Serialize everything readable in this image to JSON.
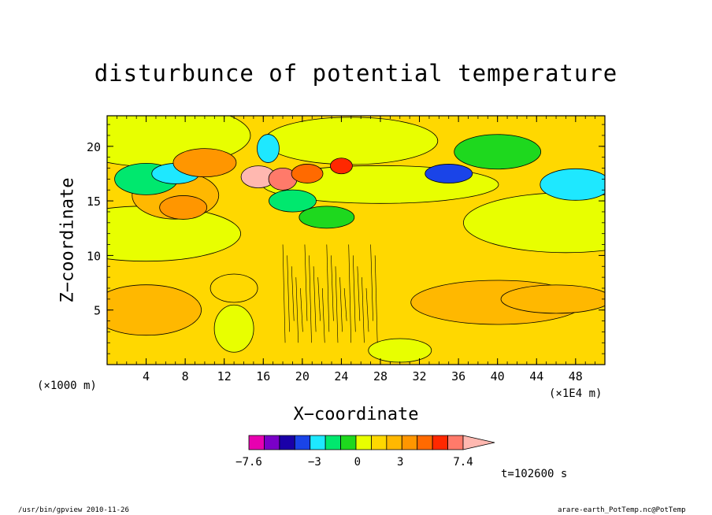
{
  "title": "disturbunce of potential temperature",
  "x_axis_title": "X−coordinate",
  "y_axis_title": "Z−coordinate",
  "x_unit_label": "(×1000 m)",
  "x_scale_label": "(×1E4 m)",
  "time_label": "t=102600 s",
  "footer_left": "/usr/bin/gpview   2010-11-26",
  "footer_right": "arare-earth_PotTemp.nc@PotTemp",
  "colors": {
    "levels": [
      "#e800b0",
      "#7a00c8",
      "#1a00a8",
      "#1a44e8",
      "#1ee8ff",
      "#00e86e",
      "#1ed81e",
      "#e8ff00",
      "#ffd800",
      "#ffb800",
      "#ff9600",
      "#ff6a00",
      "#ff2800",
      "#ff7a6a",
      "#ffb8b0"
    ]
  },
  "chart_data": {
    "type": "heatmap",
    "title": "disturbunce of potential temperature",
    "xlabel": "X−coordinate",
    "ylabel": "Z−coordinate",
    "xlim": [
      0,
      51
    ],
    "ylim": [
      0,
      22.8
    ],
    "x_ticks": [
      4,
      8,
      12,
      16,
      20,
      24,
      28,
      32,
      36,
      40,
      44,
      48
    ],
    "y_ticks": [
      5,
      10,
      15,
      20
    ],
    "colorbar": {
      "min": -7.6,
      "max": 7.4,
      "tick_labels": [
        "−7.6",
        "−3",
        "0",
        "3",
        "7.4"
      ],
      "tick_values": [
        -7.6,
        -3,
        0,
        3,
        7.4
      ]
    },
    "features": [
      {
        "kind": "background",
        "value": 0.4
      },
      {
        "kind": "region",
        "x": 25,
        "y": 20.5,
        "value": -0.5
      },
      {
        "kind": "region",
        "x": 28,
        "y": 16.5,
        "value": -0.5
      },
      {
        "kind": "region",
        "x": 5,
        "y": 21,
        "value": -0.5
      },
      {
        "kind": "region",
        "x": 47,
        "y": 13,
        "value": -0.4
      },
      {
        "kind": "region",
        "x": 4,
        "y": 12,
        "value": -0.4
      },
      {
        "kind": "region",
        "x": 13,
        "y": 3.3,
        "value": -0.4
      },
      {
        "kind": "region",
        "x": 30,
        "y": 1.3,
        "value": -0.4
      },
      {
        "kind": "region",
        "x": 4,
        "y": 5,
        "value": 1.4
      },
      {
        "kind": "region",
        "x": 40,
        "y": 5.7,
        "value": 1.4
      },
      {
        "kind": "region",
        "x": 46,
        "y": 6,
        "value": 2.3
      },
      {
        "kind": "region",
        "x": 13,
        "y": 7,
        "value": 1.3
      },
      {
        "kind": "region",
        "x": 7,
        "y": 15.5,
        "value": 1.4
      },
      {
        "kind": "region",
        "x": 7.8,
        "y": 14.4,
        "value": 2.6
      },
      {
        "kind": "region",
        "x": 4,
        "y": 17,
        "value": -2.0
      },
      {
        "kind": "region",
        "x": 7,
        "y": 17.5,
        "value": -2.8
      },
      {
        "kind": "region",
        "x": 35,
        "y": 17.5,
        "value": -4.5
      },
      {
        "kind": "region",
        "x": 48,
        "y": 16.5,
        "value": -3.5
      },
      {
        "kind": "region",
        "x": 40,
        "y": 19.5,
        "value": -1.5
      },
      {
        "kind": "region",
        "x": 10,
        "y": 18.5,
        "value": 3.2
      },
      {
        "kind": "region",
        "x": 15.5,
        "y": 17.2,
        "value": 7.4
      },
      {
        "kind": "region",
        "x": 18,
        "y": 17.0,
        "value": 6.0
      },
      {
        "kind": "region",
        "x": 20.5,
        "y": 17.5,
        "value": 4.0
      },
      {
        "kind": "region",
        "x": 24,
        "y": 18.2,
        "value": 4.5
      },
      {
        "kind": "region",
        "x": 19,
        "y": 15,
        "value": -2.4
      },
      {
        "kind": "region",
        "x": 22.5,
        "y": 13.5,
        "value": -1.5
      },
      {
        "kind": "region",
        "x": 16.5,
        "y": 19.8,
        "value": -3.2
      }
    ]
  }
}
